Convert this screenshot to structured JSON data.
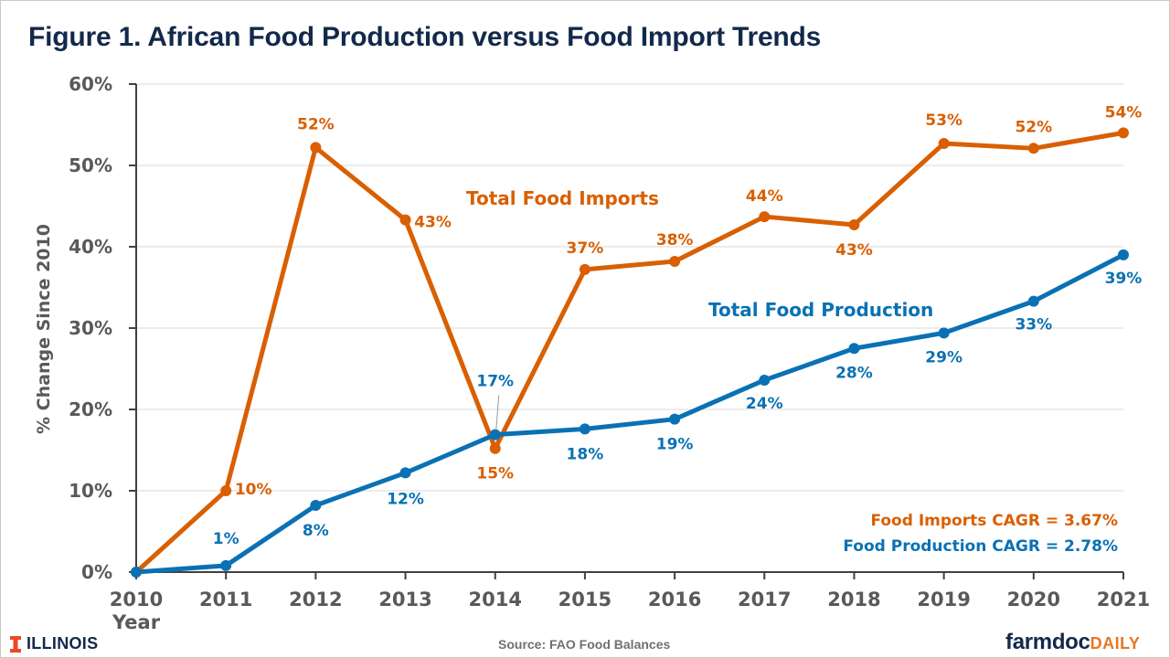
{
  "title": "Figure 1. African Food Production versus Food Import Trends",
  "footer": {
    "illinois_logo": "ILLINOIS",
    "source": "Source: FAO Food Balances",
    "brand_main": "farmdoc",
    "brand_sub": "DAILY"
  },
  "colors": {
    "imports": "#d95f02",
    "production": "#0a71b4",
    "title": "#13294b",
    "axis_text": "#595959",
    "grid": "#d9d9d9",
    "illinois_orange": "#e84a27"
  },
  "chart_data": {
    "type": "line",
    "title": "Figure 1. African Food Production versus Food Import Trends",
    "xlabel": "Year",
    "ylabel": "% Change Since 2010",
    "x": [
      "2010",
      "2011",
      "2012",
      "2013",
      "2014",
      "2015",
      "2016",
      "2017",
      "2018",
      "2019",
      "2020",
      "2021"
    ],
    "ylim": [
      0,
      60
    ],
    "yticks": [
      0,
      10,
      20,
      30,
      40,
      50,
      60
    ],
    "ytick_labels": [
      "0%",
      "10%",
      "20%",
      "30%",
      "40%",
      "50%",
      "60%"
    ],
    "grid": true,
    "legend": "inline labels",
    "series": [
      {
        "name": "Total Food Imports",
        "color": "#d95f02",
        "values": [
          0,
          10.0,
          52.2,
          43.3,
          15.2,
          37.2,
          38.2,
          43.7,
          42.7,
          52.7,
          52.1,
          54.0
        ],
        "labels": [
          "",
          "10%",
          "52%",
          "43%",
          "15%",
          "37%",
          "38%",
          "44%",
          "43%",
          "53%",
          "52%",
          "54%"
        ]
      },
      {
        "name": "Total Food Production",
        "color": "#0a71b4",
        "values": [
          0,
          0.8,
          8.2,
          12.2,
          16.9,
          17.6,
          18.8,
          23.6,
          27.5,
          29.4,
          33.3,
          39.0
        ],
        "labels": [
          "",
          "1%",
          "8%",
          "12%",
          "17%",
          "18%",
          "19%",
          "24%",
          "28%",
          "29%",
          "33%",
          "39%"
        ]
      }
    ],
    "annotations": [
      {
        "text": "Food Imports CAGR = 3.67%",
        "series": "imports"
      },
      {
        "text": "Food Production CAGR = 2.78%",
        "series": "production"
      }
    ]
  }
}
